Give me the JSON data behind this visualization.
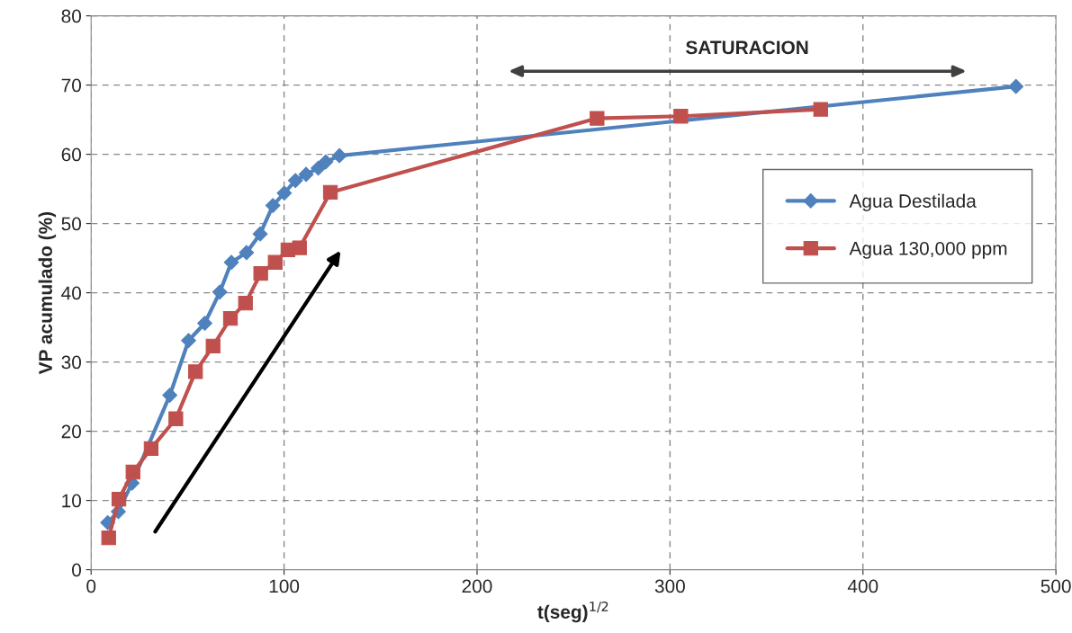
{
  "chart_data": {
    "type": "line",
    "xlabel": "t(seg)$^{1/2}$",
    "ylabel": "VP acumulado (%)",
    "xlim": [
      0,
      500
    ],
    "ylim": [
      0,
      80
    ],
    "xticks": [
      0,
      100,
      200,
      300,
      400,
      500
    ],
    "yticks": [
      0,
      10,
      20,
      30,
      40,
      50,
      60,
      70,
      80
    ],
    "grid": true,
    "legend": "right",
    "line_style": "solid",
    "annotations": [
      "SATURACION"
    ],
    "series": [
      {
        "name": "Agua Destilada",
        "color": "#4f81bd",
        "marker": "diamond",
        "x": [
          8.6,
          14.1,
          21.2,
          40.8,
          50.5,
          58.9,
          66.7,
          72.7,
          80.5,
          87.6,
          94.2,
          100.1,
          105.9,
          111.4,
          117.7,
          121.6,
          128.7,
          479.3
        ],
        "values": [
          6.8,
          8.4,
          12.5,
          25.2,
          33.1,
          35.6,
          40.1,
          44.4,
          45.8,
          48.5,
          52.6,
          54.4,
          56.2,
          57.1,
          58.0,
          58.9,
          59.8,
          69.8
        ]
      },
      {
        "name": "Agua 130,000 ppm",
        "color": "#c0504d",
        "marker": "square",
        "x": [
          9.1,
          14.4,
          21.7,
          31.1,
          43.9,
          54.1,
          63.2,
          72.2,
          80.0,
          87.9,
          95.4,
          102,
          108,
          124,
          262.2,
          305.6,
          378.1
        ],
        "values": [
          4.6,
          10.2,
          14.1,
          17.5,
          21.8,
          28.6,
          32.3,
          36.3,
          38.5,
          42.8,
          44.4,
          46.2,
          46.5,
          54.5,
          65.2,
          65.5,
          66.5
        ]
      }
    ]
  }
}
